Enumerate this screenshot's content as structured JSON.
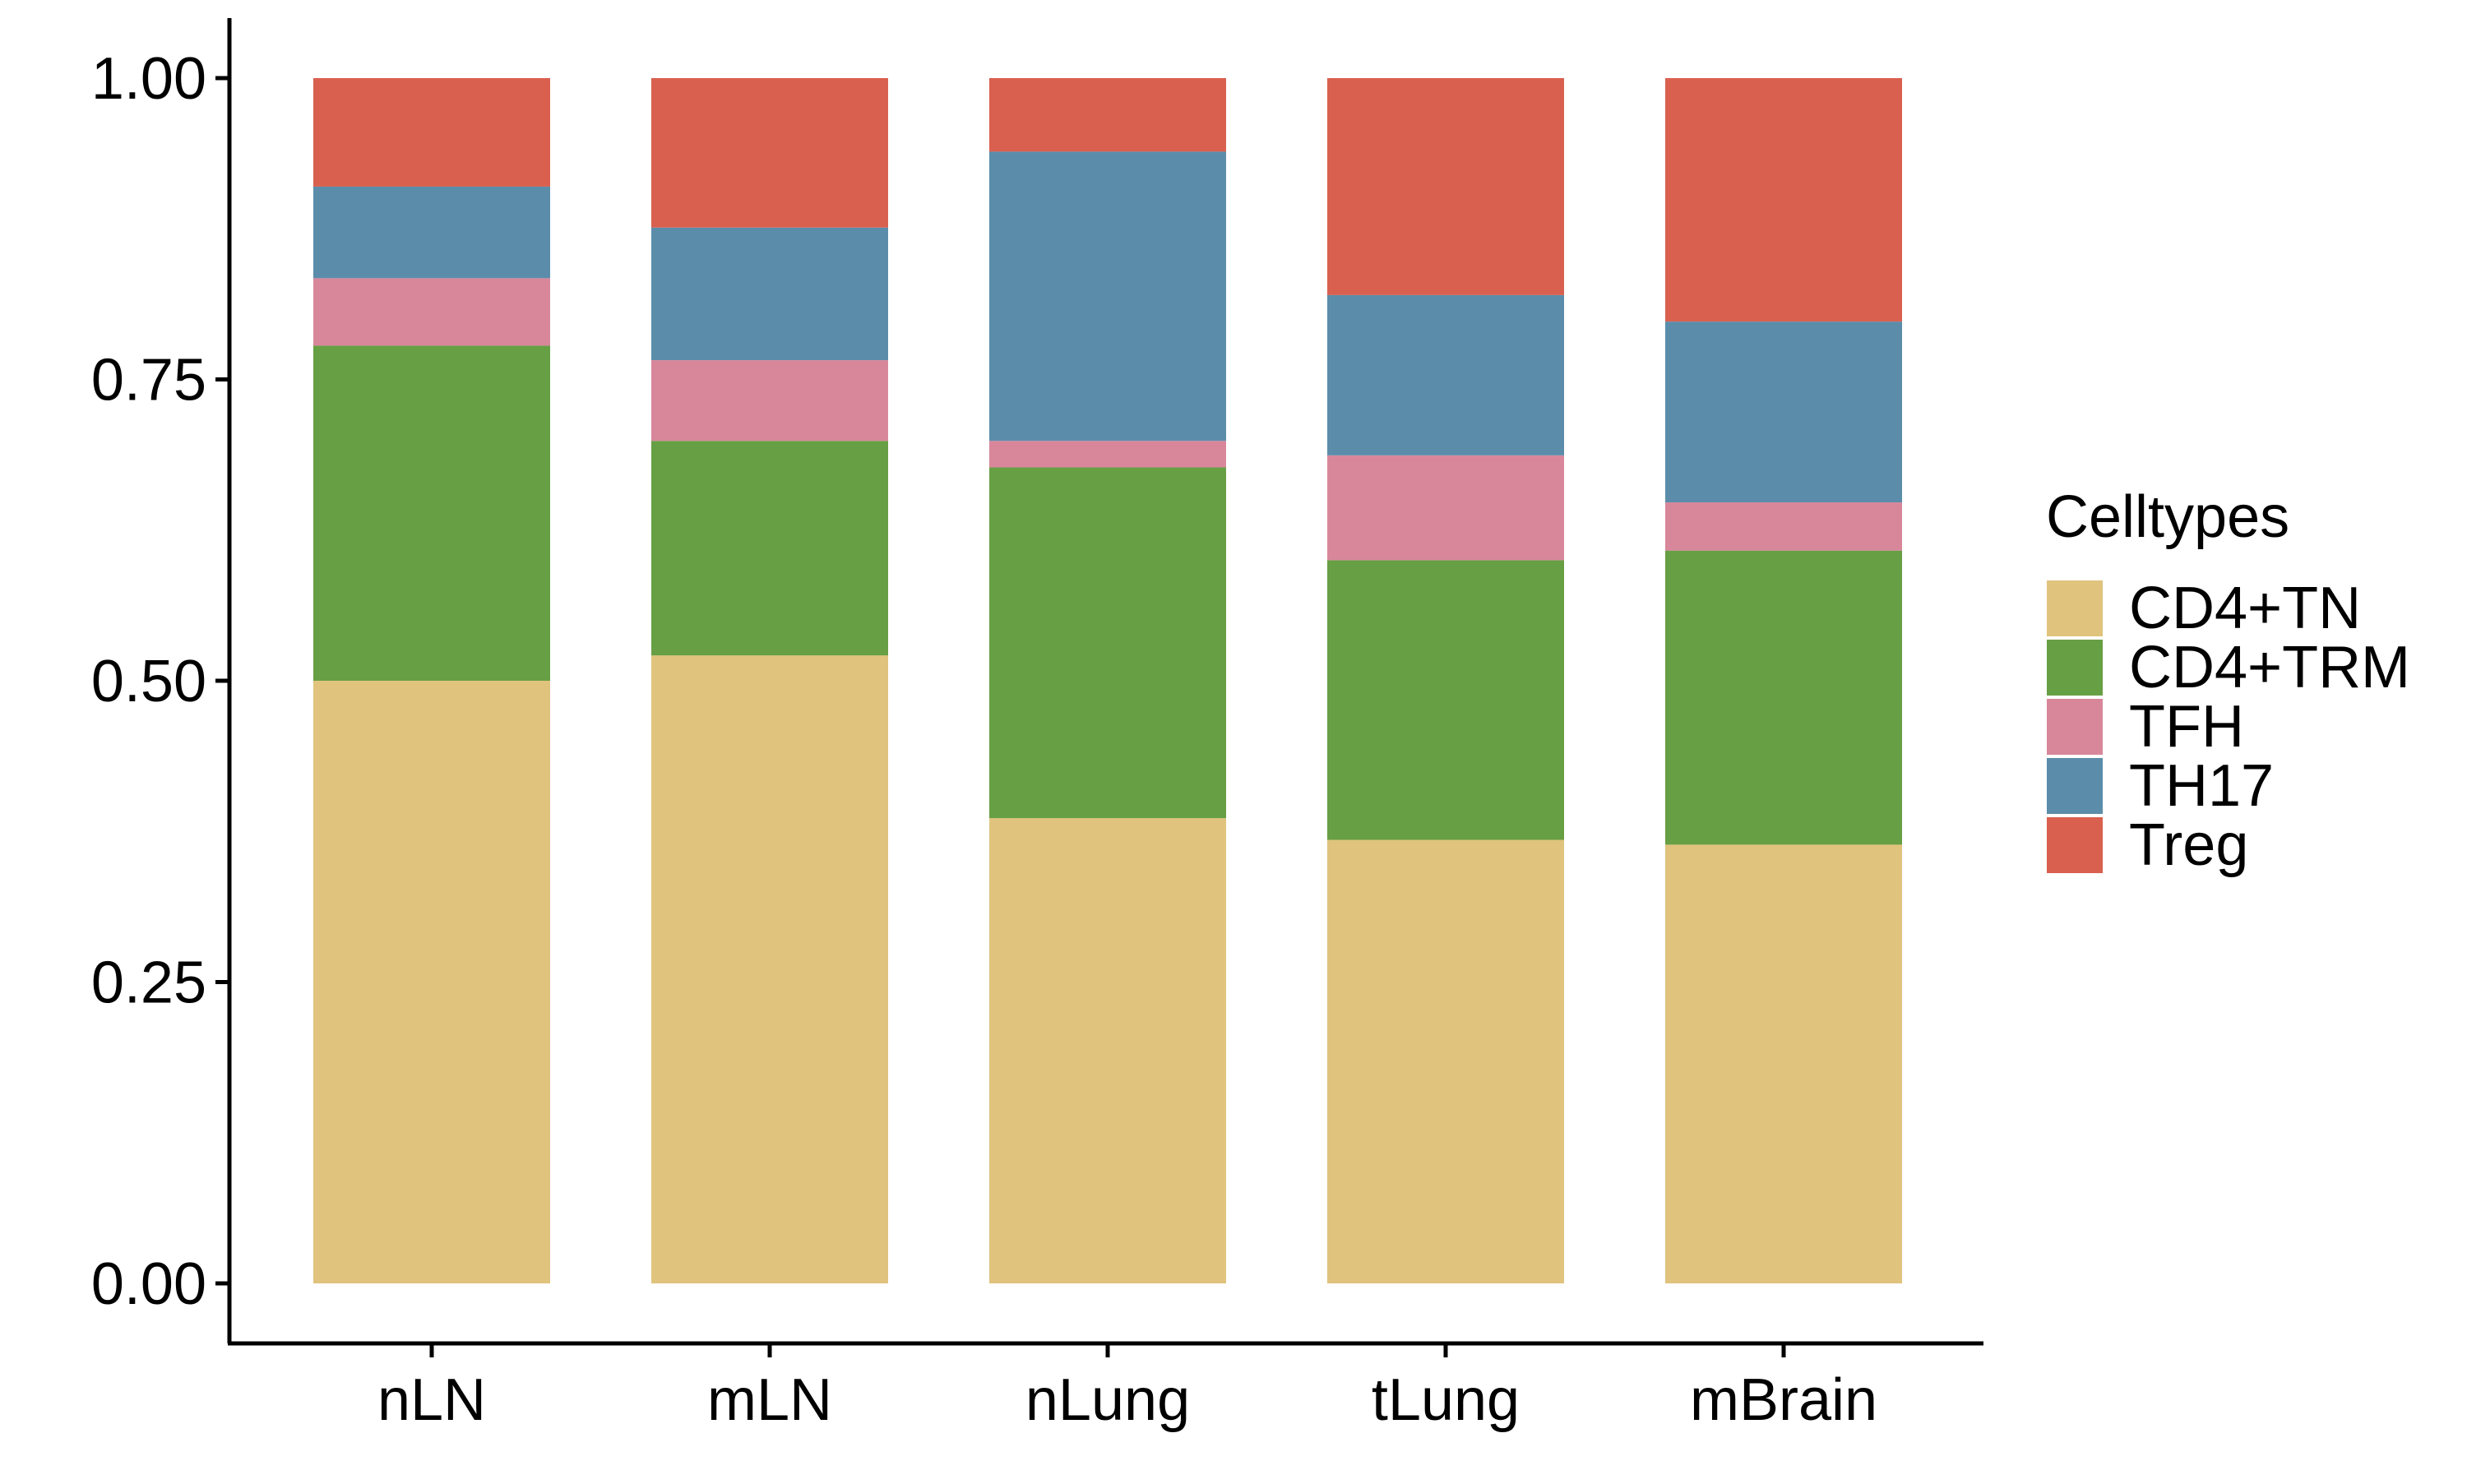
{
  "chart_data": {
    "type": "bar",
    "stacked": true,
    "title": "",
    "xlabel": "",
    "ylabel": "",
    "ylim": [
      0,
      1
    ],
    "yticks": [
      "0.00",
      "0.25",
      "0.50",
      "0.75",
      "1.00"
    ],
    "ytick_values": [
      0,
      0.25,
      0.5,
      0.75,
      1.0
    ],
    "categories": [
      "nLN",
      "mLN",
      "nLung",
      "tLung",
      "mBrain"
    ],
    "grid": false,
    "legend": {
      "title": "Celltypes",
      "placement": "right"
    },
    "series": [
      {
        "name": "CD4+TN",
        "color": "#E0C37D",
        "values": [
          0.5,
          0.521,
          0.386,
          0.368,
          0.364
        ]
      },
      {
        "name": "CD4+TRM",
        "color": "#679F45",
        "values": [
          0.278,
          0.178,
          0.291,
          0.232,
          0.244
        ]
      },
      {
        "name": "TFH",
        "color": "#D8879B",
        "values": [
          0.056,
          0.067,
          0.022,
          0.087,
          0.04
        ]
      },
      {
        "name": "TH17",
        "color": "#5B8DAB",
        "values": [
          0.076,
          0.11,
          0.24,
          0.133,
          0.15
        ]
      },
      {
        "name": "Treg",
        "color": "#D9604F",
        "values": [
          0.09,
          0.124,
          0.061,
          0.18,
          0.202
        ]
      }
    ]
  }
}
